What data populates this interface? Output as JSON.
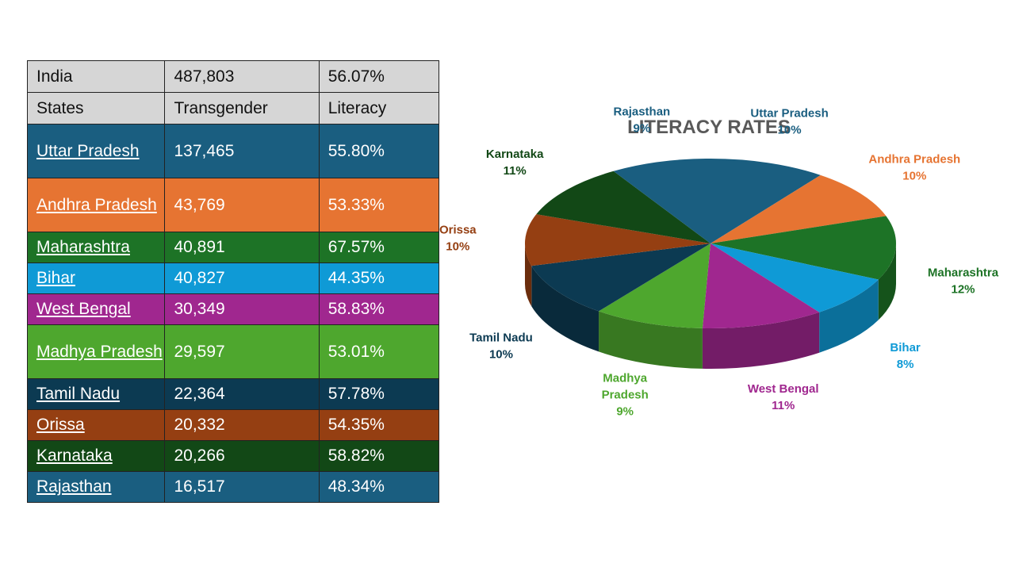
{
  "table": {
    "rows": [
      {
        "state": "India",
        "transgender": "487,803",
        "literacy": "56.07%",
        "bg": "#d6d6d6",
        "fg": "#111111",
        "link": false
      },
      {
        "state": "States",
        "transgender": "Transgender",
        "literacy": "Literacy",
        "bg": "#d6d6d6",
        "fg": "#111111",
        "link": false
      },
      {
        "state": "Uttar Pradesh",
        "transgender": "137,465",
        "literacy": "55.80%",
        "bg": "#1a5e80",
        "fg": "#ffffff",
        "link": true
      },
      {
        "state": "Andhra Pradesh",
        "transgender": "43,769",
        "literacy": "53.33%",
        "bg": "#e67432",
        "fg": "#ffffff",
        "link": true
      },
      {
        "state": "Maharashtra",
        "transgender": "40,891",
        "literacy": "67.57%",
        "bg": "#1d7326",
        "fg": "#ffffff",
        "link": true
      },
      {
        "state": "Bihar",
        "transgender": "40,827",
        "literacy": "44.35%",
        "bg": "#0f9ad6",
        "fg": "#ffffff",
        "link": true
      },
      {
        "state": "West Bengal",
        "transgender": "30,349",
        "literacy": "58.83%",
        "bg": "#a0278f",
        "fg": "#ffffff",
        "link": true
      },
      {
        "state": "Madhya Pradesh",
        "transgender": "29,597",
        "literacy": "53.01%",
        "bg": "#4ea72e",
        "fg": "#ffffff",
        "link": true
      },
      {
        "state": "Tamil Nadu",
        "transgender": "22,364",
        "literacy": "57.78%",
        "bg": "#0c3a52",
        "fg": "#ffffff",
        "link": true
      },
      {
        "state": "Orissa",
        "transgender": "20,332",
        "literacy": "54.35%",
        "bg": "#953f12",
        "fg": "#ffffff",
        "link": true
      },
      {
        "state": "Karnataka",
        "transgender": "20,266",
        "literacy": "58.82%",
        "bg": "#124816",
        "fg": "#ffffff",
        "link": true
      },
      {
        "state": "Rajasthan",
        "transgender": "16,517",
        "literacy": "48.34%",
        "bg": "#1a5e80",
        "fg": "#ffffff",
        "link": true
      }
    ]
  },
  "chart_data": {
    "type": "pie",
    "title": "LITERACY RATES",
    "categories": [
      "Uttar Pradesh",
      "Andhra Pradesh",
      "Maharashtra",
      "Bihar",
      "West Bengal",
      "Madhya Pradesh",
      "Tamil Nadu",
      "Orissa",
      "Karnataka",
      "Rajasthan"
    ],
    "values": [
      55.8,
      53.33,
      67.57,
      44.35,
      58.83,
      53.01,
      57.78,
      54.35,
      58.82,
      48.34
    ],
    "percent_labels": [
      "10%",
      "10%",
      "12%",
      "8%",
      "11%",
      "9%",
      "10%",
      "10%",
      "11%",
      "9%"
    ],
    "colors": [
      "#1a5e80",
      "#e67432",
      "#1d7326",
      "#0f9ad6",
      "#a0278f",
      "#4ea72e",
      "#0c3a52",
      "#953f12",
      "#124816",
      "#1a5e80"
    ],
    "style": "3d-tilted",
    "legend": "none, data labels outside"
  }
}
